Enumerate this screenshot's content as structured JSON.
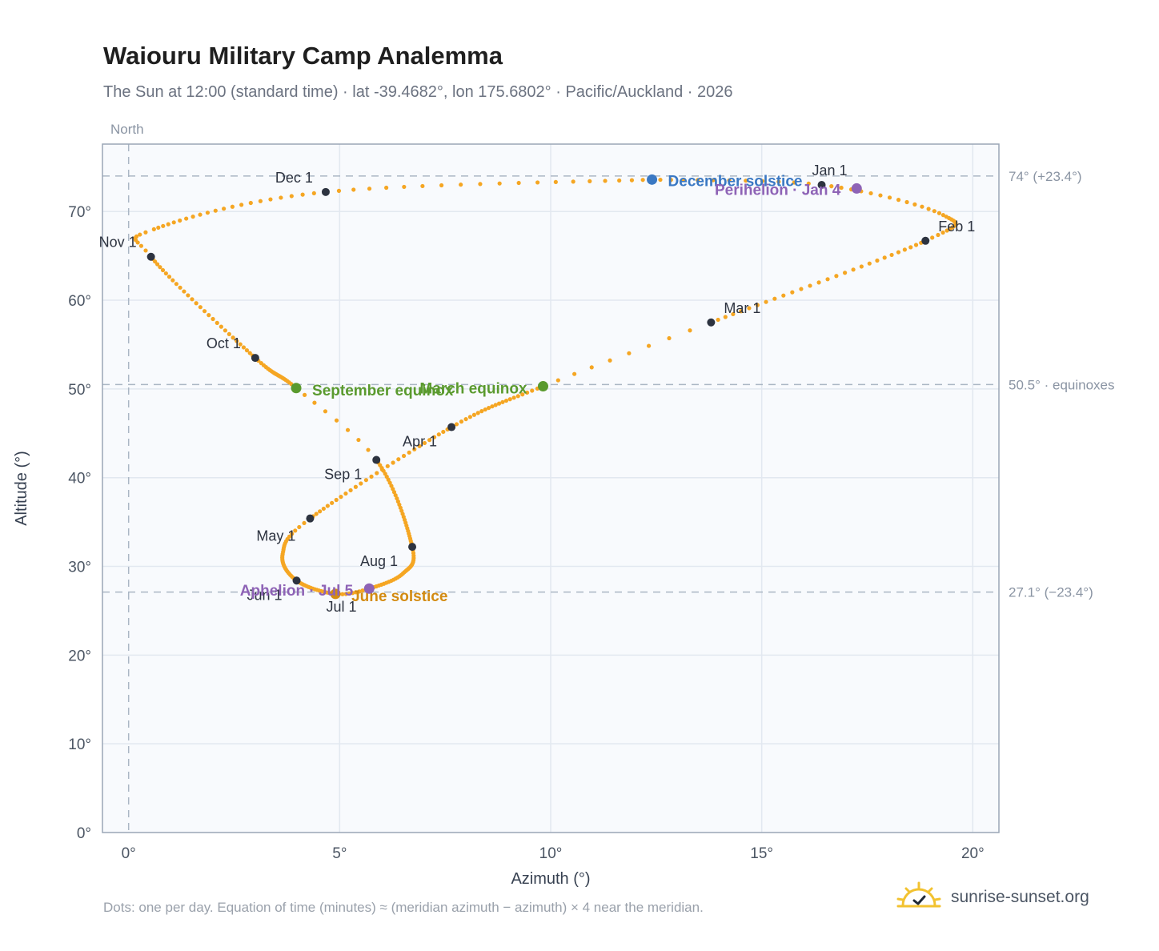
{
  "header": {
    "title": "Waiouru Military Camp Analemma",
    "subtitle": "The Sun at 12:00 (standard time) · lat -39.4682°, lon 175.6802° · Pacific/Auckland · 2026"
  },
  "footer": {
    "note": "Dots: one per day. Equation of time (minutes) ≈ (meridian azimuth − azimuth) × 4 near the meridian.",
    "brand": "sunrise-sunset.org"
  },
  "colors": {
    "path": "#f5a623",
    "month_marker": "#2d3340",
    "equinox": "#5a9a2e",
    "december_solstice": "#3a78c3",
    "june_solstice": "#d38b12",
    "apsis": "#8e63b6",
    "grid": "#e2e8f0",
    "plot_bg": "#f8fafd",
    "frame": "#9aa6b6",
    "ref_line": "#aab6c4"
  },
  "chart_data": {
    "type": "scatter",
    "xlabel": "Azimuth (°)",
    "ylabel": "Altitude (°)",
    "xlim": [
      -0.62,
      20.62
    ],
    "ylim": [
      0,
      77.6
    ],
    "xticks": [
      0,
      5,
      10,
      15,
      20
    ],
    "xtick_labels": [
      "0°",
      "5°",
      "10°",
      "15°",
      "20°"
    ],
    "yticks": [
      0,
      10,
      20,
      30,
      40,
      50,
      60,
      70
    ],
    "ytick_labels": [
      "0°",
      "10°",
      "20°",
      "30°",
      "40°",
      "50°",
      "60°",
      "70°"
    ],
    "grid": true,
    "north_label": "North",
    "north_azimuth": 0,
    "reference_lines": [
      {
        "altitude": 74,
        "label": "74° (+23.4°)"
      },
      {
        "altitude": 50.5,
        "label": "50.5° · equinoxes"
      },
      {
        "altitude": 27.1,
        "label": "27.1° (−23.4°)"
      }
    ],
    "month_markers": [
      {
        "label": "Jan 1",
        "az": 16.42,
        "alt": 73.0
      },
      {
        "label": "Feb 1",
        "az": 18.88,
        "alt": 66.7
      },
      {
        "label": "Mar 1",
        "az": 13.8,
        "alt": 57.5
      },
      {
        "label": "Apr 1",
        "az": 7.65,
        "alt": 45.7
      },
      {
        "label": "May 1",
        "az": 4.3,
        "alt": 35.4
      },
      {
        "label": "Jun 1",
        "az": 3.98,
        "alt": 28.4
      },
      {
        "label": "Jul 1",
        "az": 4.87,
        "alt": 26.9
      },
      {
        "label": "Aug 1",
        "az": 6.72,
        "alt": 32.2
      },
      {
        "label": "Sep 1",
        "az": 5.87,
        "alt": 42.0
      },
      {
        "label": "Oct 1",
        "az": 3.0,
        "alt": 53.5
      },
      {
        "label": "Nov 1",
        "az": 0.53,
        "alt": 64.9
      },
      {
        "label": "Dec 1",
        "az": 4.67,
        "alt": 72.2
      }
    ],
    "events": [
      {
        "label": "December solstice",
        "az": 12.4,
        "alt": 73.6,
        "kind": "december_solstice"
      },
      {
        "label": "Perihelion · Jan 4",
        "az": 17.25,
        "alt": 72.6,
        "kind": "apsis"
      },
      {
        "label": "March equinox",
        "az": 9.82,
        "alt": 50.3,
        "kind": "equinox"
      },
      {
        "label": "September equinox",
        "az": 3.97,
        "alt": 50.1,
        "kind": "equinox"
      },
      {
        "label": "June solstice",
        "az": 4.9,
        "alt": 26.9,
        "kind": "june_solstice"
      },
      {
        "label": "Aphelion · Jul 5",
        "az": 5.7,
        "alt": 27.5,
        "kind": "apsis"
      }
    ],
    "path_knots": [
      [
        0,
        12.4,
        73.6
      ],
      [
        12,
        16.42,
        73.0
      ],
      [
        27,
        19.3,
        69.6
      ],
      [
        43,
        18.88,
        66.7
      ],
      [
        71,
        13.8,
        57.5
      ],
      [
        80,
        9.82,
        50.3
      ],
      [
        102,
        7.65,
        45.7
      ],
      [
        132,
        4.3,
        35.4
      ],
      [
        145,
        3.65,
        31.4
      ],
      [
        163,
        3.98,
        28.4
      ],
      [
        183,
        4.9,
        26.9
      ],
      [
        193,
        5.7,
        27.5
      ],
      [
        208,
        6.5,
        29.2
      ],
      [
        224,
        6.72,
        32.2
      ],
      [
        255,
        5.87,
        42.0
      ],
      [
        263,
        3.97,
        50.1
      ],
      [
        285,
        3.0,
        53.5
      ],
      [
        315,
        0.53,
        64.9
      ],
      [
        324,
        0.6,
        68.0
      ],
      [
        345,
        4.67,
        72.2
      ],
      [
        365,
        12.4,
        73.6
      ]
    ]
  }
}
